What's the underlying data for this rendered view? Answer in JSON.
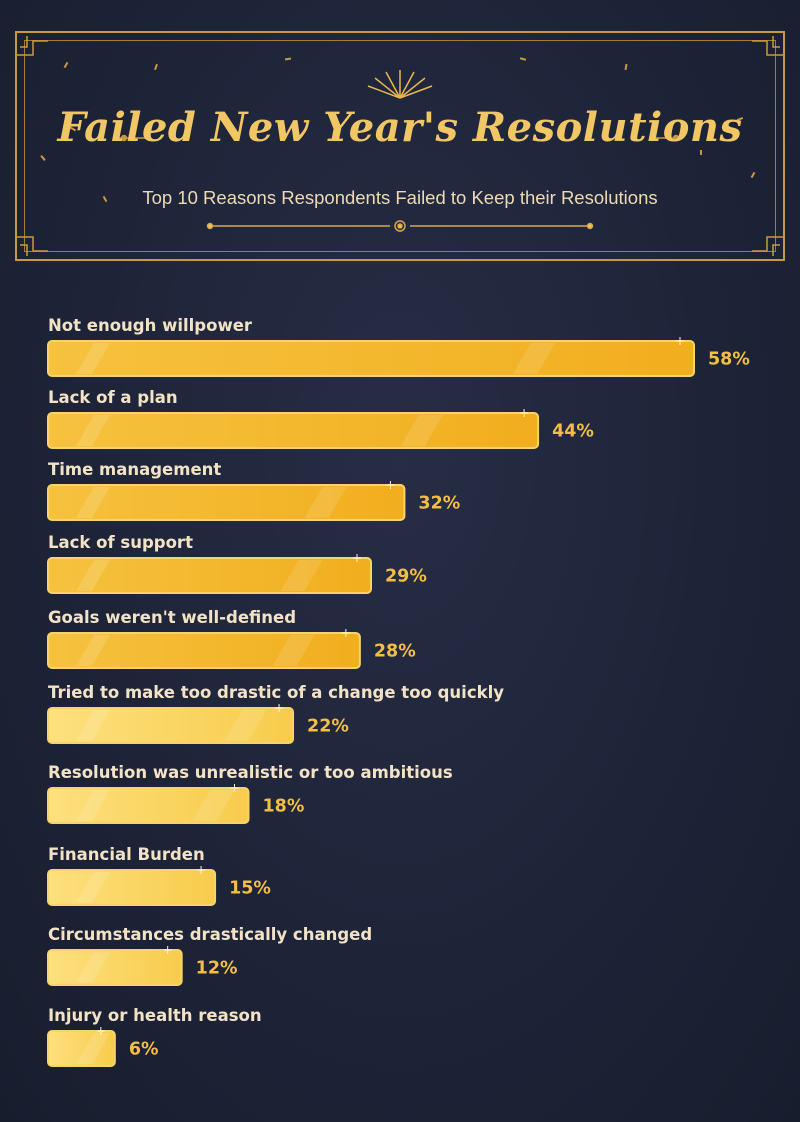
{
  "header": {
    "title": "Failed New Year's Resolutions",
    "subtitle": "Top 10 Reasons Respondents Failed to Keep their Resolutions"
  },
  "colors": {
    "background": "#1e2438",
    "gold": "#f3be43",
    "gold_light": "#fde17a",
    "frame": "#c99a3c",
    "label_text": "#f3e3c6"
  },
  "chart_data": {
    "type": "bar",
    "orientation": "horizontal",
    "title": "Failed New Year's Resolutions",
    "subtitle": "Top 10 Reasons Respondents Failed to Keep their Resolutions",
    "categories": [
      "Not enough willpower",
      "Lack of a plan",
      "Time management",
      "Lack of support",
      "Goals weren't well-defined",
      "Tried to make too drastic of a change too quickly",
      "Resolution was unrealistic or too ambitious",
      "Financial Burden",
      "Circumstances drastically changed",
      "Injury or health reason"
    ],
    "values": [
      58,
      44,
      32,
      29,
      28,
      22,
      18,
      15,
      12,
      6
    ],
    "value_labels": [
      "58%",
      "44%",
      "32%",
      "29%",
      "28%",
      "22%",
      "18%",
      "15%",
      "12%",
      "6%"
    ],
    "unit": "%",
    "xlim": [
      0,
      58
    ],
    "grid": false,
    "legend": "none"
  }
}
